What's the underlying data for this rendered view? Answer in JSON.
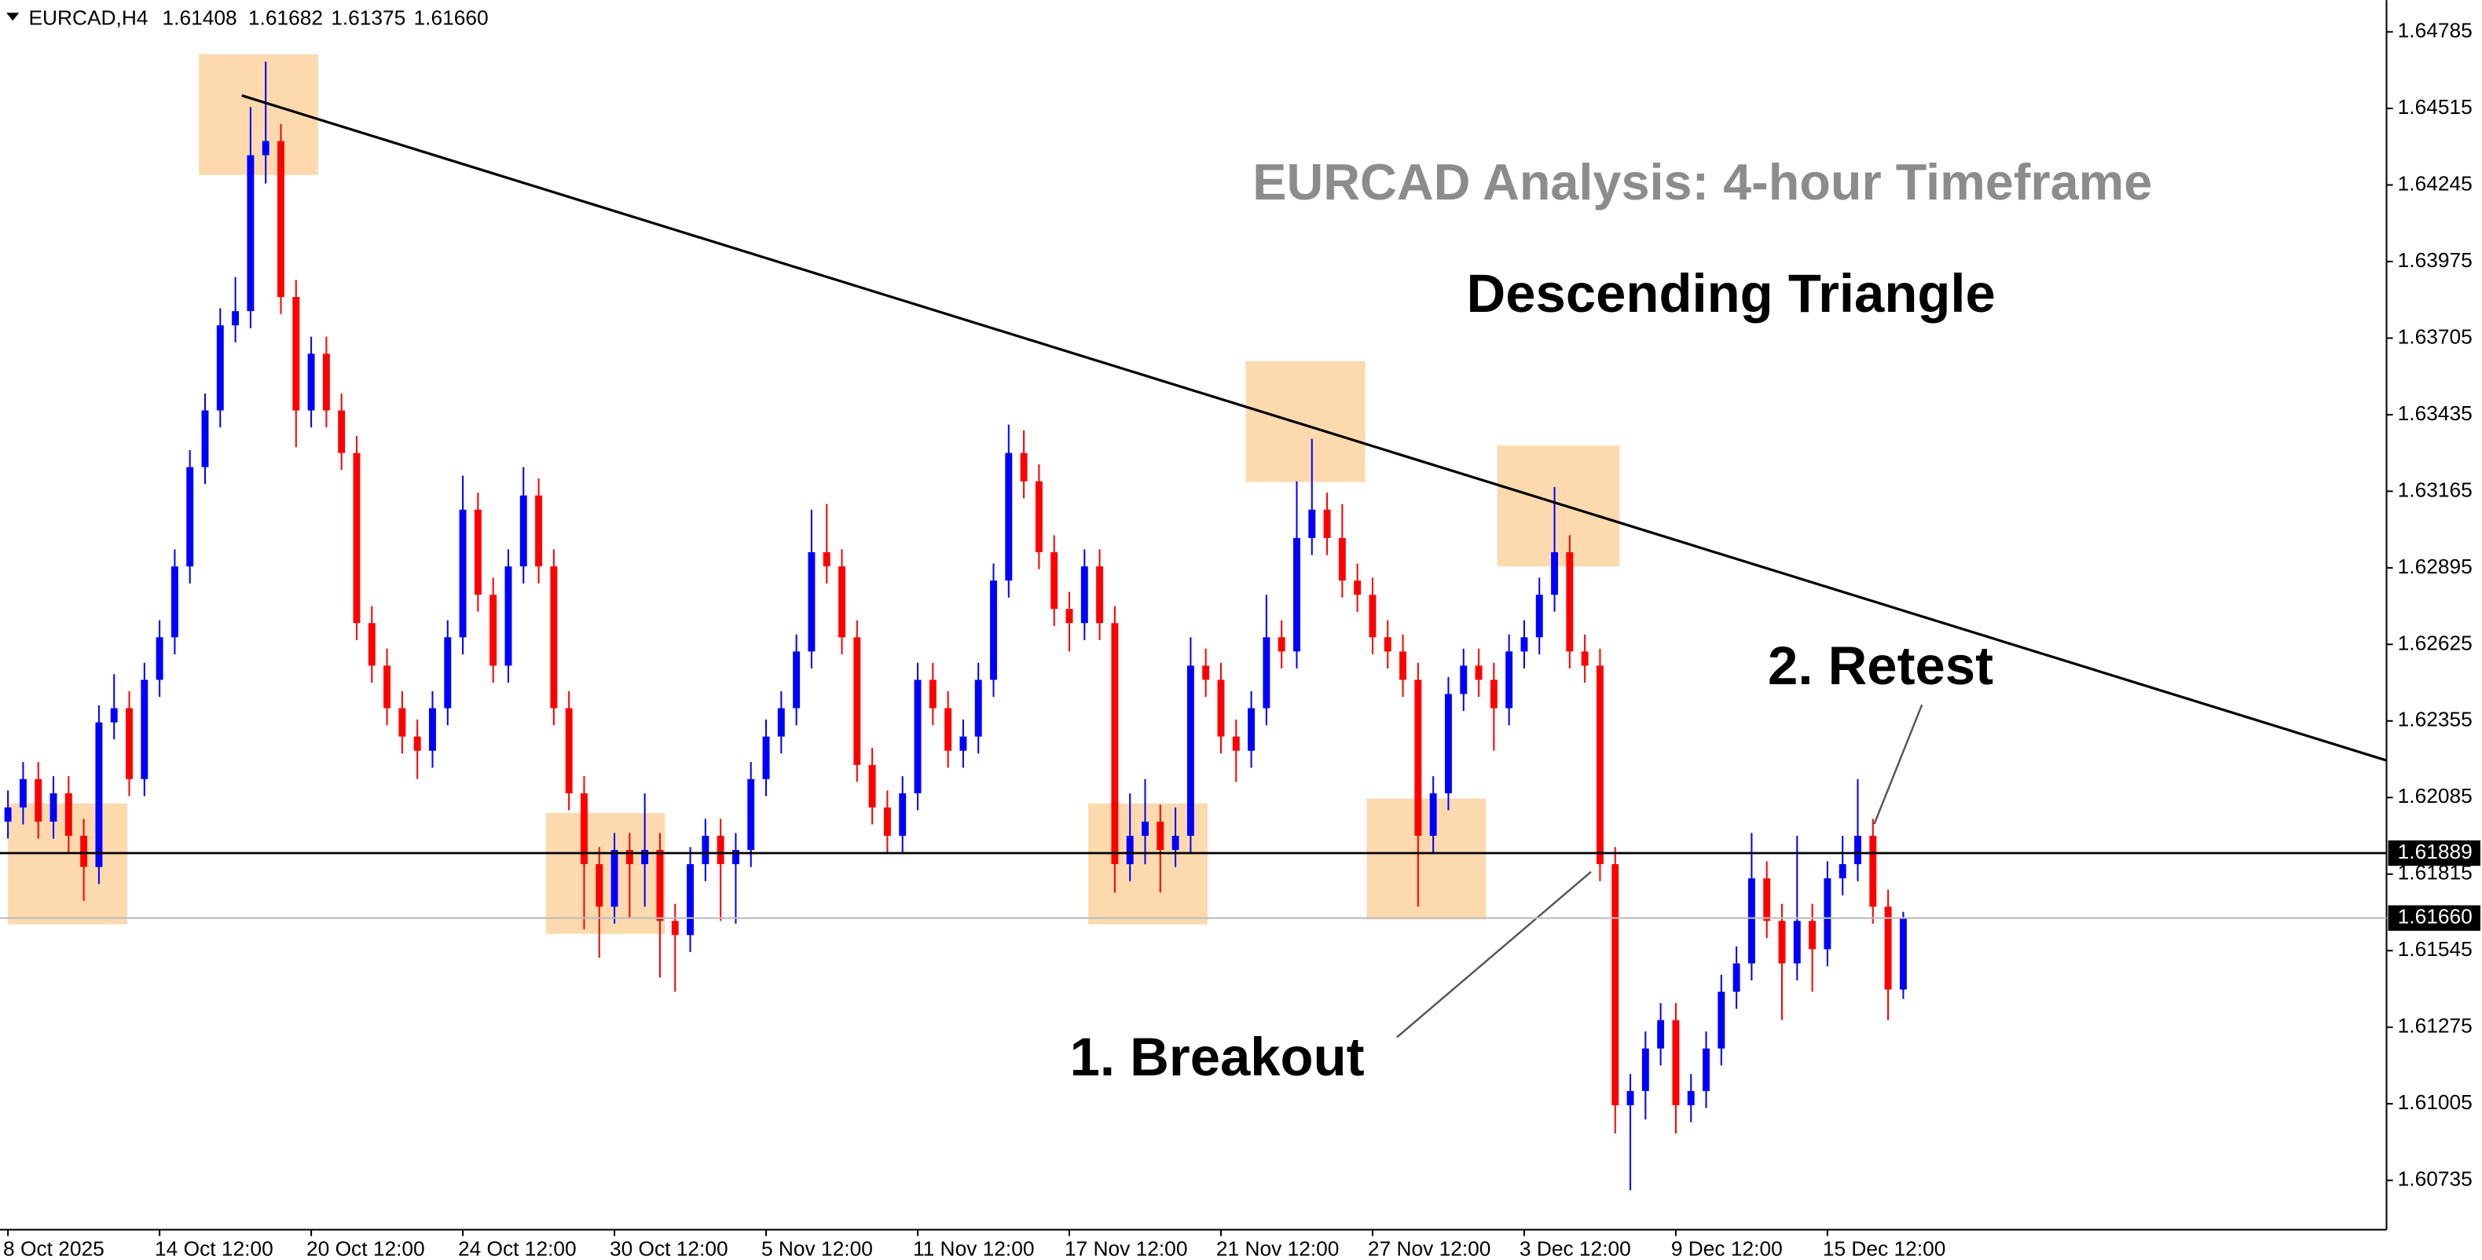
{
  "chart_data": {
    "type": "candlestick",
    "header": {
      "symbol": "EURCAD,H4",
      "values": [
        "1.61408",
        "1.61682",
        "1.61375",
        "1.61660"
      ]
    },
    "title": "EURCAD Analysis: 4-hour Timeframe",
    "annotations": [
      "Descending Triangle",
      "1. Breakout",
      "2. Retest"
    ],
    "up_color": "#0000ff",
    "down_color": "#ff0000",
    "support": 1.61889,
    "last_price": {
      "value": 1.6166,
      "label": "1.61660"
    },
    "ylim": [
      1.60561,
      1.64897
    ],
    "yticks": [
      1.64785,
      1.64515,
      1.64245,
      1.63975,
      1.63705,
      1.63435,
      1.63165,
      1.62895,
      1.62625,
      1.62355,
      1.62085,
      1.61815,
      1.61545,
      1.61275,
      1.61005,
      1.60735
    ],
    "categories": [
      "8 Oct 2025",
      null,
      null,
      null,
      null,
      null,
      null,
      null,
      null,
      null,
      "14 Oct 12:00",
      null,
      null,
      null,
      null,
      null,
      null,
      null,
      null,
      null,
      "20 Oct 12:00",
      null,
      null,
      null,
      null,
      null,
      null,
      null,
      null,
      null,
      "24 Oct 12:00",
      null,
      null,
      null,
      null,
      null,
      null,
      null,
      null,
      null,
      "30 Oct 12:00",
      null,
      null,
      null,
      null,
      null,
      null,
      null,
      null,
      null,
      "5 Nov 12:00",
      null,
      null,
      null,
      null,
      null,
      null,
      null,
      null,
      null,
      "11 Nov 12:00",
      null,
      null,
      null,
      null,
      null,
      null,
      null,
      null,
      null,
      "17 Nov 12:00",
      null,
      null,
      null,
      null,
      null,
      null,
      null,
      null,
      null,
      "21 Nov 12:00",
      null,
      null,
      null,
      null,
      null,
      null,
      null,
      null,
      null,
      "27 Nov 12:00",
      null,
      null,
      null,
      null,
      null,
      null,
      null,
      null,
      null,
      "3 Dec 12:00",
      null,
      null,
      null,
      null,
      null,
      null,
      null,
      null,
      null,
      "9 Dec 12:00",
      null,
      null,
      null,
      null,
      null,
      null,
      null,
      null,
      null,
      "15 Dec 12:00",
      null,
      null,
      null,
      null,
      null
    ],
    "open": [
      1.62,
      1.6205,
      1.6215,
      1.62,
      1.621,
      1.6195,
      1.6184,
      1.6235,
      1.624,
      1.6215,
      1.625,
      1.6265,
      1.629,
      1.6325,
      1.6345,
      1.6375,
      1.638,
      1.6435,
      1.644,
      1.6385,
      1.6345,
      1.6365,
      1.6345,
      1.633,
      1.627,
      1.6255,
      1.624,
      1.623,
      1.6225,
      1.624,
      1.6265,
      1.631,
      1.628,
      1.6255,
      1.629,
      1.6315,
      1.629,
      1.624,
      1.621,
      1.6185,
      1.617,
      1.619,
      1.6185,
      1.619,
      1.6165,
      1.616,
      1.6185,
      1.6195,
      1.6185,
      1.619,
      1.6215,
      1.623,
      1.624,
      1.626,
      1.6295,
      1.629,
      1.6265,
      1.622,
      1.6205,
      1.6195,
      1.621,
      1.625,
      1.624,
      1.6225,
      1.623,
      1.625,
      1.6285,
      1.633,
      1.632,
      1.6295,
      1.6275,
      1.627,
      1.629,
      1.627,
      1.6185,
      1.6195,
      1.62,
      1.619,
      1.6195,
      1.6255,
      1.625,
      1.623,
      1.6225,
      1.624,
      1.6265,
      1.626,
      1.63,
      1.631,
      1.63,
      1.6285,
      1.628,
      1.6265,
      1.626,
      1.625,
      1.6195,
      1.621,
      1.6245,
      1.6255,
      1.625,
      1.624,
      1.626,
      1.6265,
      1.628,
      1.6295,
      1.626,
      1.6255,
      1.6185,
      1.61,
      1.6105,
      1.612,
      1.613,
      1.61,
      1.6105,
      1.612,
      1.614,
      1.615,
      1.618,
      1.6165,
      1.615,
      1.6165,
      1.6155,
      1.618,
      1.6185,
      1.6195,
      1.617,
      1.61408
    ],
    "high": [
      1.6211,
      1.6221,
      1.6221,
      1.6216,
      1.6216,
      1.6201,
      1.6241,
      1.6252,
      1.6246,
      1.6256,
      1.6271,
      1.6296,
      1.6331,
      1.6351,
      1.6381,
      1.6392,
      1.6452,
      1.6468,
      1.6446,
      1.6391,
      1.6371,
      1.6371,
      1.6351,
      1.6336,
      1.6276,
      1.6261,
      1.6246,
      1.6236,
      1.6246,
      1.6271,
      1.6322,
      1.6316,
      1.6286,
      1.6296,
      1.6325,
      1.6321,
      1.6296,
      1.6246,
      1.6216,
      1.6191,
      1.6196,
      1.6196,
      1.621,
      1.6196,
      1.6171,
      1.6191,
      1.6201,
      1.6201,
      1.6196,
      1.6221,
      1.6236,
      1.6246,
      1.6266,
      1.631,
      1.6312,
      1.6296,
      1.6271,
      1.6226,
      1.6211,
      1.6216,
      1.6256,
      1.6256,
      1.6246,
      1.6236,
      1.6256,
      1.6291,
      1.634,
      1.6338,
      1.6326,
      1.6301,
      1.6281,
      1.6296,
      1.6296,
      1.6276,
      1.621,
      1.6215,
      1.6206,
      1.6205,
      1.6265,
      1.6261,
      1.6256,
      1.6236,
      1.6246,
      1.628,
      1.6271,
      1.632,
      1.6335,
      1.6316,
      1.6312,
      1.6291,
      1.6286,
      1.6271,
      1.6266,
      1.6256,
      1.6216,
      1.6251,
      1.6261,
      1.6261,
      1.6256,
      1.6266,
      1.6271,
      1.6286,
      1.6318,
      1.6301,
      1.6266,
      1.6261,
      1.6191,
      1.6111,
      1.6126,
      1.6136,
      1.6136,
      1.6111,
      1.6126,
      1.6146,
      1.6156,
      1.6196,
      1.6186,
      1.6171,
      1.6195,
      1.6171,
      1.6186,
      1.6195,
      1.6215,
      1.6201,
      1.6176,
      1.61682
    ],
    "low": [
      1.6194,
      1.6199,
      1.6194,
      1.6194,
      1.6189,
      1.6172,
      1.6178,
      1.6229,
      1.6209,
      1.6209,
      1.6244,
      1.6259,
      1.6284,
      1.6319,
      1.6339,
      1.6369,
      1.6374,
      1.6425,
      1.6379,
      1.6332,
      1.6339,
      1.6339,
      1.6324,
      1.6264,
      1.6249,
      1.6234,
      1.6224,
      1.6215,
      1.6219,
      1.6234,
      1.6259,
      1.6274,
      1.6249,
      1.6249,
      1.6284,
      1.6284,
      1.6234,
      1.6204,
      1.6162,
      1.6152,
      1.6164,
      1.6166,
      1.617,
      1.6145,
      1.614,
      1.6154,
      1.6179,
      1.6165,
      1.6164,
      1.6184,
      1.6209,
      1.6224,
      1.6234,
      1.6254,
      1.6284,
      1.6259,
      1.6214,
      1.6199,
      1.6189,
      1.6189,
      1.6204,
      1.6234,
      1.6219,
      1.6219,
      1.6224,
      1.6244,
      1.6279,
      1.6314,
      1.6289,
      1.6269,
      1.626,
      1.6264,
      1.6264,
      1.6175,
      1.6179,
      1.6185,
      1.6175,
      1.6184,
      1.6189,
      1.6244,
      1.6224,
      1.6214,
      1.6219,
      1.6234,
      1.6254,
      1.6254,
      1.6294,
      1.6294,
      1.6279,
      1.6274,
      1.6259,
      1.6254,
      1.6244,
      1.617,
      1.6189,
      1.6204,
      1.6239,
      1.6244,
      1.6225,
      1.6234,
      1.6254,
      1.6259,
      1.6274,
      1.6254,
      1.6249,
      1.6179,
      1.609,
      1.607,
      1.6095,
      1.6114,
      1.609,
      1.6094,
      1.6099,
      1.6114,
      1.6134,
      1.6144,
      1.6159,
      1.613,
      1.6144,
      1.614,
      1.6149,
      1.6174,
      1.6179,
      1.6164,
      1.613,
      1.61375
    ],
    "close": [
      1.6205,
      1.6215,
      1.62,
      1.621,
      1.6195,
      1.6184,
      1.6235,
      1.624,
      1.6215,
      1.625,
      1.6265,
      1.629,
      1.6325,
      1.6345,
      1.6375,
      1.638,
      1.6435,
      1.644,
      1.6385,
      1.6345,
      1.6365,
      1.6345,
      1.633,
      1.627,
      1.6255,
      1.624,
      1.623,
      1.6225,
      1.624,
      1.6265,
      1.631,
      1.628,
      1.6255,
      1.629,
      1.6315,
      1.629,
      1.624,
      1.621,
      1.6185,
      1.617,
      1.619,
      1.6185,
      1.619,
      1.6165,
      1.616,
      1.6185,
      1.6195,
      1.6185,
      1.619,
      1.6215,
      1.623,
      1.624,
      1.626,
      1.6295,
      1.629,
      1.6265,
      1.622,
      1.6205,
      1.6195,
      1.621,
      1.625,
      1.624,
      1.6225,
      1.623,
      1.625,
      1.6285,
      1.633,
      1.632,
      1.6295,
      1.6275,
      1.627,
      1.629,
      1.627,
      1.6185,
      1.6195,
      1.62,
      1.619,
      1.6195,
      1.6255,
      1.625,
      1.623,
      1.6225,
      1.624,
      1.6265,
      1.626,
      1.63,
      1.631,
      1.63,
      1.6285,
      1.628,
      1.6265,
      1.626,
      1.625,
      1.6195,
      1.621,
      1.6245,
      1.6255,
      1.625,
      1.624,
      1.626,
      1.6265,
      1.628,
      1.6295,
      1.626,
      1.6255,
      1.6185,
      1.61,
      1.6105,
      1.612,
      1.613,
      1.61,
      1.6105,
      1.612,
      1.614,
      1.615,
      1.618,
      1.6165,
      1.615,
      1.6165,
      1.6155,
      1.618,
      1.6185,
      1.6195,
      1.617,
      1.61408,
      1.6166
    ]
  }
}
